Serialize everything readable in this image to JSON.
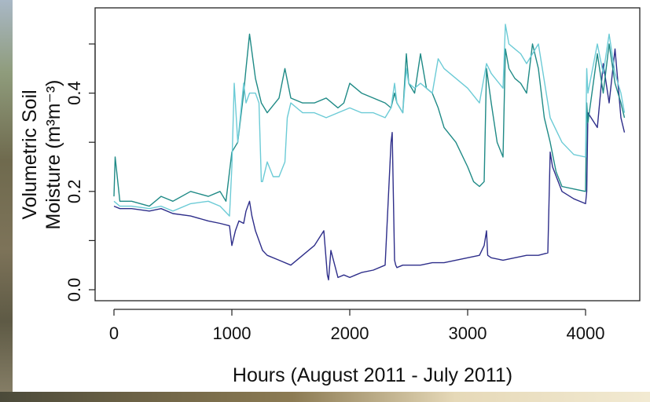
{
  "chart_data": {
    "type": "line",
    "xlabel": "Hours (August 2011 - July 2011)",
    "ylabel_line1": "Volumetric Soil",
    "ylabel_line2": "Moisture (m³m⁻³)",
    "xlim": [
      0,
      4400
    ],
    "ylim": [
      0,
      0.55
    ],
    "x_ticks": [
      0,
      1000,
      2000,
      3000,
      4000
    ],
    "y_ticks": [
      0.0,
      0.2,
      0.4
    ],
    "y_tick_labels": [
      "0.0",
      "0.2",
      "0.4"
    ],
    "grid": false,
    "legend": "none",
    "series": [
      {
        "color": "#2e2e8a",
        "x": [
          0,
          50,
          150,
          300,
          400,
          500,
          650,
          800,
          900,
          980,
          1000,
          1030,
          1060,
          1100,
          1120,
          1150,
          1170,
          1200,
          1230,
          1260,
          1300,
          1400,
          1500,
          1600,
          1700,
          1780,
          1810,
          1820,
          1840,
          1900,
          1950,
          2000,
          2050,
          2100,
          2200,
          2300,
          2350,
          2360,
          2380,
          2390,
          2400,
          2450,
          2500,
          2600,
          2700,
          2800,
          2900,
          3000,
          3100,
          3140,
          3160,
          3170,
          3200,
          3300,
          3400,
          3500,
          3600,
          3680,
          3700,
          3720,
          3800,
          3900,
          4000,
          4010,
          4020,
          4100,
          4150,
          4200,
          4250,
          4300,
          4330
        ],
        "y": [
          0.17,
          0.165,
          0.165,
          0.16,
          0.165,
          0.155,
          0.15,
          0.14,
          0.135,
          0.13,
          0.09,
          0.12,
          0.14,
          0.135,
          0.16,
          0.18,
          0.15,
          0.12,
          0.1,
          0.08,
          0.07,
          0.06,
          0.05,
          0.07,
          0.09,
          0.12,
          0.03,
          0.02,
          0.08,
          0.025,
          0.03,
          0.025,
          0.03,
          0.035,
          0.04,
          0.05,
          0.3,
          0.32,
          0.06,
          0.05,
          0.045,
          0.05,
          0.05,
          0.05,
          0.055,
          0.055,
          0.06,
          0.065,
          0.07,
          0.09,
          0.12,
          0.07,
          0.065,
          0.06,
          0.065,
          0.07,
          0.07,
          0.075,
          0.28,
          0.25,
          0.2,
          0.185,
          0.175,
          0.2,
          0.36,
          0.33,
          0.46,
          0.38,
          0.49,
          0.35,
          0.32
        ]
      },
      {
        "color": "#1f8a86",
        "x": [
          0,
          10,
          50,
          150,
          300,
          400,
          500,
          650,
          800,
          900,
          950,
          1000,
          1050,
          1100,
          1120,
          1150,
          1200,
          1250,
          1300,
          1400,
          1450,
          1500,
          1600,
          1700,
          1800,
          1900,
          1950,
          2000,
          2100,
          2200,
          2300,
          2350,
          2380,
          2400,
          2450,
          2480,
          2500,
          2550,
          2600,
          2650,
          2700,
          2750,
          2800,
          2900,
          3000,
          3050,
          3100,
          3140,
          3160,
          3200,
          3250,
          3300,
          3320,
          3350,
          3400,
          3450,
          3500,
          3550,
          3600,
          3650,
          3680,
          3700,
          3750,
          3800,
          3900,
          4000,
          4010,
          4020,
          4100,
          4150,
          4200,
          4250,
          4300,
          4330
        ],
        "y": [
          0.19,
          0.27,
          0.18,
          0.18,
          0.17,
          0.19,
          0.18,
          0.2,
          0.19,
          0.2,
          0.18,
          0.28,
          0.3,
          0.4,
          0.45,
          0.52,
          0.43,
          0.38,
          0.36,
          0.39,
          0.45,
          0.39,
          0.38,
          0.38,
          0.39,
          0.37,
          0.38,
          0.42,
          0.4,
          0.39,
          0.38,
          0.37,
          0.4,
          0.38,
          0.36,
          0.48,
          0.42,
          0.4,
          0.48,
          0.41,
          0.4,
          0.37,
          0.33,
          0.3,
          0.25,
          0.22,
          0.21,
          0.22,
          0.45,
          0.38,
          0.3,
          0.27,
          0.49,
          0.45,
          0.43,
          0.42,
          0.4,
          0.5,
          0.45,
          0.35,
          0.32,
          0.3,
          0.24,
          0.21,
          0.205,
          0.2,
          0.38,
          0.34,
          0.48,
          0.4,
          0.5,
          0.42,
          0.38,
          0.35
        ]
      },
      {
        "color": "#6ccbd6",
        "x": [
          0,
          50,
          150,
          300,
          400,
          500,
          650,
          800,
          900,
          980,
          1000,
          1020,
          1050,
          1100,
          1120,
          1150,
          1200,
          1230,
          1250,
          1260,
          1300,
          1350,
          1400,
          1450,
          1470,
          1500,
          1600,
          1700,
          1800,
          1900,
          2000,
          2100,
          2200,
          2300,
          2350,
          2380,
          2400,
          2450,
          2480,
          2500,
          2550,
          2600,
          2700,
          2750,
          2800,
          2900,
          3000,
          3100,
          3160,
          3200,
          3300,
          3320,
          3350,
          3400,
          3450,
          3500,
          3600,
          3680,
          3700,
          3800,
          3900,
          4000,
          4010,
          4020,
          4100,
          4150,
          4200,
          4250,
          4300,
          4330
        ],
        "y": [
          0.18,
          0.17,
          0.17,
          0.165,
          0.17,
          0.16,
          0.175,
          0.18,
          0.17,
          0.15,
          0.25,
          0.42,
          0.3,
          0.42,
          0.38,
          0.4,
          0.4,
          0.38,
          0.22,
          0.22,
          0.26,
          0.23,
          0.23,
          0.26,
          0.35,
          0.38,
          0.36,
          0.36,
          0.35,
          0.36,
          0.37,
          0.36,
          0.36,
          0.35,
          0.37,
          0.42,
          0.38,
          0.36,
          0.45,
          0.42,
          0.41,
          0.42,
          0.4,
          0.47,
          0.45,
          0.43,
          0.41,
          0.38,
          0.46,
          0.44,
          0.41,
          0.54,
          0.5,
          0.49,
          0.48,
          0.46,
          0.5,
          0.38,
          0.35,
          0.3,
          0.275,
          0.27,
          0.45,
          0.4,
          0.5,
          0.44,
          0.52,
          0.44,
          0.4,
          0.36
        ]
      }
    ]
  }
}
